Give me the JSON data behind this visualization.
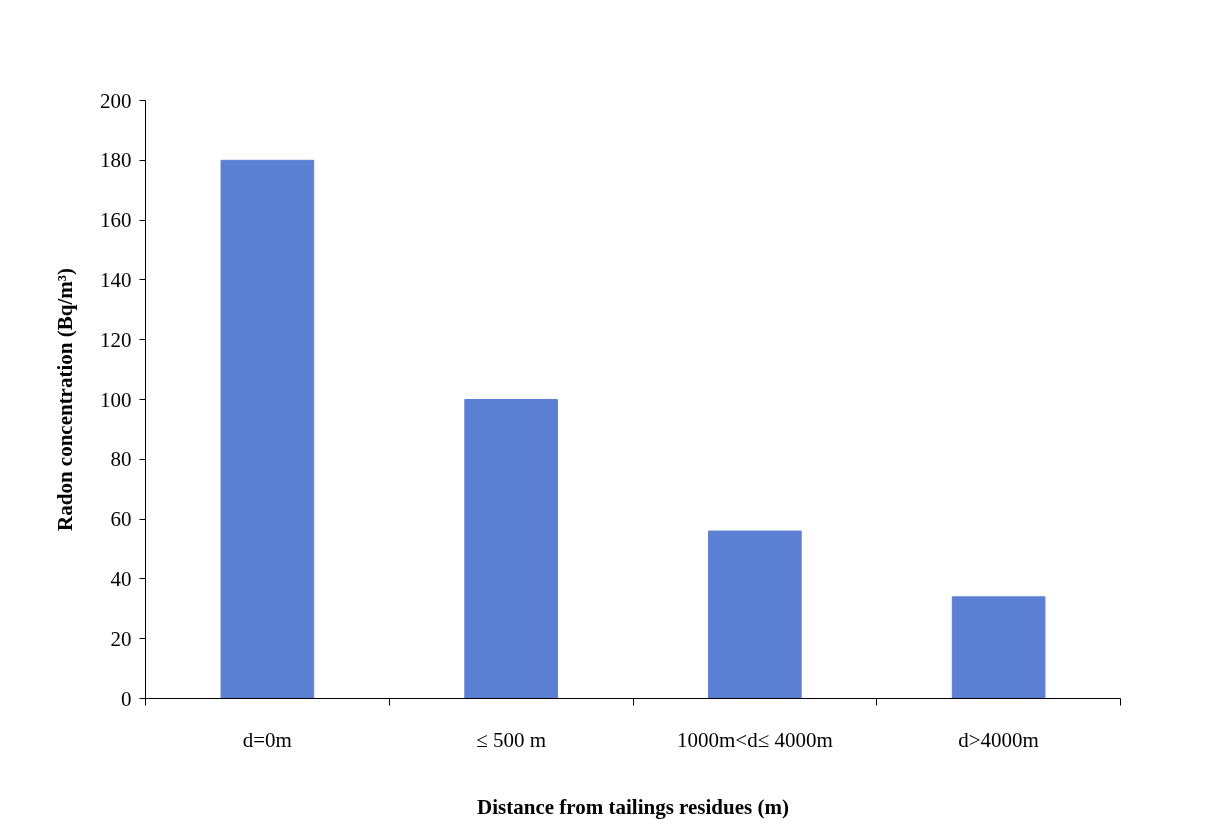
{
  "chart_data": {
    "type": "bar",
    "xlabel": "Distance from tailings residues (m)",
    "ylabel": "Radon concentration (Bq/m³)",
    "categories": [
      "d=0m",
      "≤ 500 m",
      "1000m<d≤ 4000m",
      "d>4000m"
    ],
    "values": [
      180,
      100,
      56,
      34
    ],
    "color": "#5b7fd2",
    "ylim": [
      0,
      200
    ],
    "yticks": [
      0,
      20,
      40,
      60,
      80,
      100,
      120,
      140,
      160,
      180,
      200
    ],
    "grid": false
  }
}
